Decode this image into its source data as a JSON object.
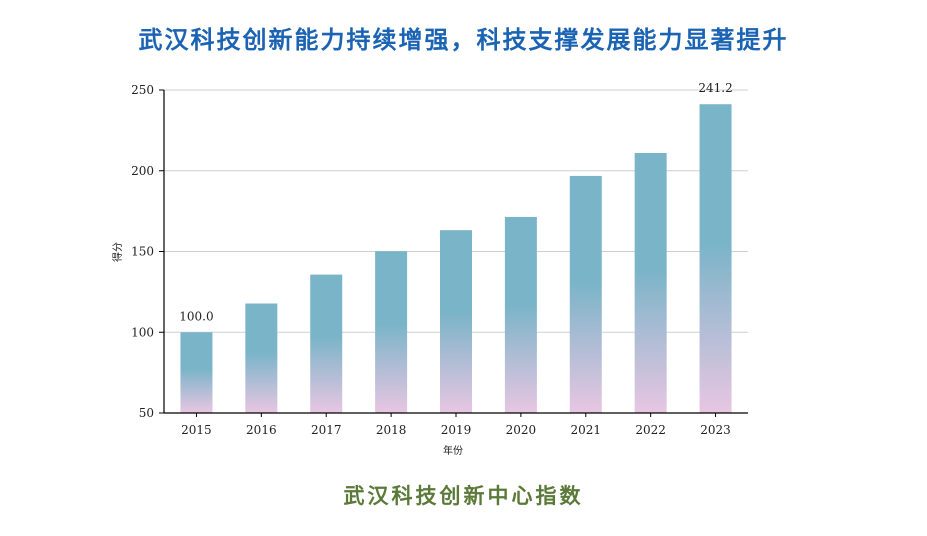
{
  "headline": "武汉科技创新能力持续增强，科技支撑发展能力显著提升",
  "footer_title": "武汉科技创新中心指数",
  "colors": {
    "headline": "#1b63b3",
    "footer": "#5b7a3a",
    "bar_top": "#7ab4c8",
    "bar_bottom": "#e8c6e2",
    "grid": "#cfcfcf"
  },
  "chart_data": {
    "type": "bar",
    "title": "",
    "xlabel": "年份",
    "ylabel": "得分",
    "ylim": [
      50,
      250
    ],
    "yticks": [
      50,
      100,
      150,
      200,
      250
    ],
    "grid": true,
    "categories": [
      "2015",
      "2016",
      "2017",
      "2018",
      "2019",
      "2020",
      "2021",
      "2022",
      "2023"
    ],
    "values": [
      100.0,
      117.8,
      135.7,
      150.2,
      163.2,
      171.4,
      196.8,
      211.0,
      241.2
    ],
    "annotations": [
      {
        "category": "2015",
        "text": "100.0"
      },
      {
        "category": "2023",
        "text": "241.2"
      }
    ]
  }
}
